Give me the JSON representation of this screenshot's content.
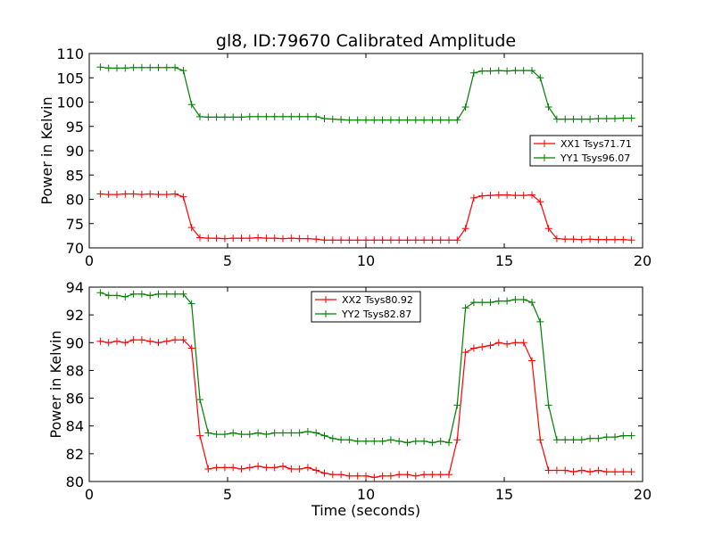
{
  "title": "gl8, ID:79670 Calibrated Amplitude",
  "colors": {
    "red": "#ff0000",
    "green": "#007f00"
  },
  "chart_data": [
    {
      "type": "line",
      "ylabel": "Power in Kelvin",
      "xlabel": "",
      "xlim": [
        0,
        20
      ],
      "ylim": [
        70,
        110
      ],
      "xticks": [
        0,
        5,
        10,
        15,
        20
      ],
      "xtick_labels": [
        "0",
        "5",
        "10",
        "15",
        "20"
      ],
      "yticks": [
        70,
        75,
        80,
        85,
        90,
        95,
        100,
        105,
        110
      ],
      "ytick_labels": [
        "70",
        "75",
        "80",
        "85",
        "90",
        "95",
        "100",
        "105",
        "110"
      ],
      "legend_position": "center-right",
      "x": [
        0.4,
        0.7,
        1.0,
        1.3,
        1.6,
        1.9,
        2.2,
        2.5,
        2.8,
        3.1,
        3.4,
        3.7,
        4.0,
        4.3,
        4.6,
        4.9,
        5.2,
        5.5,
        5.8,
        6.1,
        6.4,
        6.7,
        7.0,
        7.3,
        7.6,
        7.9,
        8.2,
        8.5,
        8.8,
        9.1,
        9.4,
        9.7,
        10.0,
        10.3,
        10.6,
        10.9,
        11.2,
        11.5,
        11.8,
        12.1,
        12.4,
        12.7,
        13.0,
        13.3,
        13.6,
        13.9,
        14.2,
        14.5,
        14.8,
        15.1,
        15.4,
        15.7,
        16.0,
        16.3,
        16.6,
        16.9,
        17.2,
        17.5,
        17.8,
        18.1,
        18.4,
        18.7,
        19.0,
        19.3,
        19.6
      ],
      "series": [
        {
          "name": "XX1 Tsys71.71",
          "color": "red",
          "values": [
            81.1,
            81.0,
            81.0,
            81.1,
            81.1,
            81.0,
            81.1,
            81.0,
            81.0,
            81.1,
            80.5,
            74.2,
            72.1,
            72.0,
            72.0,
            71.9,
            72.0,
            72.0,
            72.0,
            72.1,
            72.0,
            72.0,
            71.9,
            72.0,
            71.9,
            71.9,
            71.8,
            71.6,
            71.6,
            71.6,
            71.6,
            71.6,
            71.6,
            71.6,
            71.6,
            71.6,
            71.6,
            71.6,
            71.6,
            71.6,
            71.6,
            71.6,
            71.6,
            71.6,
            74.0,
            80.3,
            80.7,
            80.8,
            80.9,
            80.9,
            80.8,
            80.8,
            80.9,
            79.5,
            74.0,
            71.9,
            71.8,
            71.8,
            71.7,
            71.8,
            71.7,
            71.7,
            71.7,
            71.7,
            71.6
          ]
        },
        {
          "name": "YY1 Tsys96.07",
          "color": "green",
          "values": [
            107.2,
            107.0,
            107.0,
            107.0,
            107.1,
            107.1,
            107.1,
            107.1,
            107.1,
            107.1,
            106.5,
            99.5,
            97.0,
            96.9,
            96.9,
            96.9,
            96.9,
            96.9,
            97.0,
            97.0,
            97.0,
            97.0,
            97.0,
            97.0,
            97.0,
            97.0,
            97.0,
            96.6,
            96.5,
            96.4,
            96.3,
            96.3,
            96.3,
            96.3,
            96.3,
            96.3,
            96.3,
            96.3,
            96.3,
            96.3,
            96.3,
            96.3,
            96.3,
            96.3,
            99.0,
            106.0,
            106.4,
            106.4,
            106.5,
            106.4,
            106.5,
            106.5,
            106.5,
            105.0,
            99.0,
            96.5,
            96.5,
            96.5,
            96.5,
            96.5,
            96.6,
            96.6,
            96.6,
            96.7,
            96.7
          ]
        }
      ]
    },
    {
      "type": "line",
      "ylabel": "Power in Kelvin",
      "xlabel": "Time (seconds)",
      "xlim": [
        0,
        20
      ],
      "ylim": [
        80,
        94
      ],
      "xticks": [
        0,
        5,
        10,
        15,
        20
      ],
      "xtick_labels": [
        "0",
        "5",
        "10",
        "15",
        "20"
      ],
      "yticks": [
        80,
        82,
        84,
        86,
        88,
        90,
        92,
        94
      ],
      "ytick_labels": [
        "80",
        "82",
        "84",
        "86",
        "88",
        "90",
        "92",
        "94"
      ],
      "legend_position": "top-center",
      "x": [
        0.4,
        0.7,
        1.0,
        1.3,
        1.6,
        1.9,
        2.2,
        2.5,
        2.8,
        3.1,
        3.4,
        3.7,
        4.0,
        4.3,
        4.6,
        4.9,
        5.2,
        5.5,
        5.8,
        6.1,
        6.4,
        6.7,
        7.0,
        7.3,
        7.6,
        7.9,
        8.2,
        8.5,
        8.8,
        9.1,
        9.4,
        9.7,
        10.0,
        10.3,
        10.6,
        10.9,
        11.2,
        11.5,
        11.8,
        12.1,
        12.4,
        12.7,
        13.0,
        13.3,
        13.6,
        13.9,
        14.2,
        14.5,
        14.8,
        15.1,
        15.4,
        15.7,
        16.0,
        16.3,
        16.6,
        16.9,
        17.2,
        17.5,
        17.8,
        18.1,
        18.4,
        18.7,
        19.0,
        19.3,
        19.6
      ],
      "series": [
        {
          "name": "XX2 Tsys80.92",
          "color": "red",
          "values": [
            90.1,
            90.0,
            90.1,
            90.0,
            90.2,
            90.2,
            90.1,
            90.0,
            90.1,
            90.2,
            90.2,
            89.6,
            83.3,
            80.9,
            81.0,
            81.0,
            81.0,
            80.9,
            81.0,
            81.1,
            81.0,
            81.0,
            81.1,
            80.9,
            80.9,
            81.0,
            80.8,
            80.6,
            80.5,
            80.5,
            80.4,
            80.4,
            80.4,
            80.3,
            80.4,
            80.4,
            80.5,
            80.5,
            80.4,
            80.5,
            80.5,
            80.5,
            80.5,
            83.0,
            89.3,
            89.6,
            89.7,
            89.8,
            90.0,
            89.9,
            90.0,
            90.0,
            88.7,
            83.0,
            80.8,
            80.8,
            80.8,
            80.7,
            80.8,
            80.7,
            80.8,
            80.7,
            80.7,
            80.7,
            80.7
          ]
        },
        {
          "name": "YY2 Tsys82.87",
          "color": "green",
          "values": [
            93.6,
            93.4,
            93.4,
            93.3,
            93.5,
            93.5,
            93.4,
            93.5,
            93.5,
            93.5,
            93.5,
            92.8,
            85.9,
            83.5,
            83.4,
            83.4,
            83.5,
            83.4,
            83.4,
            83.5,
            83.4,
            83.5,
            83.5,
            83.5,
            83.5,
            83.6,
            83.5,
            83.3,
            83.1,
            83.0,
            83.0,
            82.9,
            82.9,
            82.9,
            82.9,
            83.0,
            82.9,
            82.8,
            82.9,
            82.9,
            82.8,
            82.9,
            82.8,
            85.5,
            92.5,
            92.9,
            92.9,
            92.9,
            93.0,
            93.0,
            93.1,
            93.1,
            92.9,
            91.5,
            85.5,
            83.0,
            83.0,
            83.0,
            83.0,
            83.1,
            83.1,
            83.2,
            83.2,
            83.3,
            83.3
          ]
        }
      ]
    }
  ]
}
